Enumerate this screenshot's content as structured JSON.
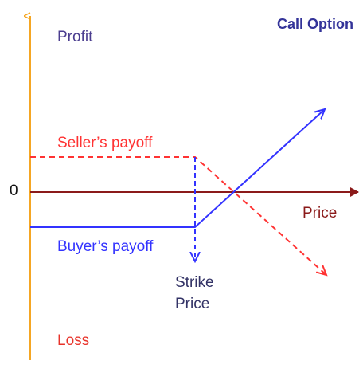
{
  "title": "Call Option",
  "axis": {
    "top": "Profit",
    "bottom": "Loss",
    "zero": "0",
    "x": "Price"
  },
  "lines": {
    "seller": "Seller’s payoff",
    "buyer": "Buyer’s payoff"
  },
  "strike": [
    "Strike",
    "Price"
  ]
}
